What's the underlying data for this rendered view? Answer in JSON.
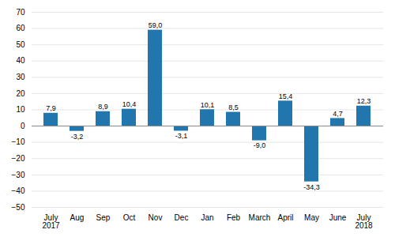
{
  "chart_data": {
    "type": "bar",
    "categories": [
      "July\n2017",
      "Aug",
      "Sep",
      "Oct",
      "Nov",
      "Dec",
      "Jan",
      "Feb",
      "March",
      "April",
      "May",
      "June",
      "July\n2018"
    ],
    "values": [
      7.9,
      -3.2,
      8.9,
      10.4,
      59.0,
      -3.1,
      10.1,
      8.5,
      -9.0,
      15.4,
      -34.3,
      4.7,
      12.3
    ],
    "value_labels": [
      "7,9",
      "-3,2",
      "8,9",
      "10,4",
      "59,0",
      "-3,1",
      "10,1",
      "8,5",
      "-9,0",
      "15,4",
      "-34,3",
      "4,7",
      "12,3"
    ],
    "color": "#2176ae",
    "ylim": [
      -50,
      70
    ],
    "yticks": [
      -50,
      -40,
      -30,
      -20,
      -10,
      0,
      10,
      20,
      30,
      40,
      50,
      60,
      70
    ],
    "grid": true,
    "data_labels": true
  }
}
